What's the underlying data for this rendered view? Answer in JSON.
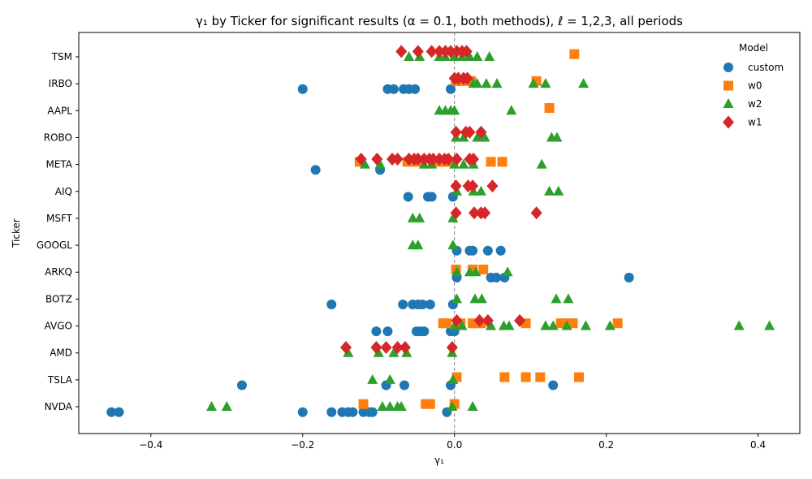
{
  "chart_data": {
    "type": "scatter",
    "title": "γ₁ by Ticker for significant results (α = 0.1, both methods), ℓ = 1,2,3, all periods",
    "xlabel": "γ₁",
    "ylabel": "Ticker",
    "xlim": [
      -0.495,
      0.455
    ],
    "xticks": [
      -0.4,
      -0.2,
      0.0,
      0.2,
      0.4
    ],
    "xtick_labels": [
      "−0.4",
      "−0.2",
      "0.0",
      "0.2",
      "0.4"
    ],
    "categories": [
      "NVDA",
      "TSLA",
      "AMD",
      "AVGO",
      "BOTZ",
      "ARKQ",
      "GOOGL",
      "MSFT",
      "AIQ",
      "META",
      "ROBO",
      "AAPL",
      "IRBO",
      "TSM"
    ],
    "reference_line_x": 0,
    "legend": {
      "title": "Model",
      "position": "top-right"
    },
    "series": [
      {
        "name": "custom",
        "color": "#1f77b4",
        "marker": "circle",
        "offset": -0.2,
        "points": [
          [
            "NVDA",
            -0.452
          ],
          [
            "NVDA",
            -0.442
          ],
          [
            "NVDA",
            -0.2
          ],
          [
            "NVDA",
            -0.162
          ],
          [
            "NVDA",
            -0.148
          ],
          [
            "NVDA",
            -0.14
          ],
          [
            "NVDA",
            -0.134
          ],
          [
            "NVDA",
            -0.12
          ],
          [
            "NVDA",
            -0.112
          ],
          [
            "NVDA",
            -0.108
          ],
          [
            "NVDA",
            -0.01
          ],
          [
            "TSLA",
            -0.28
          ],
          [
            "TSLA",
            -0.09
          ],
          [
            "TSLA",
            -0.066
          ],
          [
            "TSLA",
            -0.005
          ],
          [
            "TSLA",
            0.13
          ],
          [
            "AVGO",
            -0.103
          ],
          [
            "AVGO",
            -0.088
          ],
          [
            "AVGO",
            -0.05
          ],
          [
            "AVGO",
            -0.045
          ],
          [
            "AVGO",
            -0.04
          ],
          [
            "AVGO",
            -0.005
          ],
          [
            "AVGO",
            0.0
          ],
          [
            "BOTZ",
            -0.162
          ],
          [
            "BOTZ",
            -0.068
          ],
          [
            "BOTZ",
            -0.055
          ],
          [
            "BOTZ",
            -0.048
          ],
          [
            "BOTZ",
            -0.042
          ],
          [
            "BOTZ",
            -0.032
          ],
          [
            "BOTZ",
            -0.002
          ],
          [
            "ARKQ",
            0.003
          ],
          [
            "ARKQ",
            0.048
          ],
          [
            "ARKQ",
            0.055
          ],
          [
            "ARKQ",
            0.066
          ],
          [
            "ARKQ",
            0.23
          ],
          [
            "GOOGL",
            0.003
          ],
          [
            "GOOGL",
            0.02
          ],
          [
            "GOOGL",
            0.024
          ],
          [
            "GOOGL",
            0.044
          ],
          [
            "GOOGL",
            0.061
          ],
          [
            "AIQ",
            -0.061
          ],
          [
            "AIQ",
            -0.035
          ],
          [
            "AIQ",
            -0.03
          ],
          [
            "AIQ",
            -0.002
          ],
          [
            "META",
            -0.183
          ],
          [
            "META",
            -0.098
          ],
          [
            "IRBO",
            -0.2
          ],
          [
            "IRBO",
            -0.088
          ],
          [
            "IRBO",
            -0.08
          ],
          [
            "IRBO",
            -0.067
          ],
          [
            "IRBO",
            -0.06
          ],
          [
            "IRBO",
            -0.052
          ],
          [
            "IRBO",
            -0.005
          ]
        ]
      },
      {
        "name": "w0",
        "color": "#ff7f0e",
        "marker": "square",
        "offset": 0.1,
        "points": [
          [
            "NVDA",
            -0.12
          ],
          [
            "NVDA",
            -0.038
          ],
          [
            "NVDA",
            -0.032
          ],
          [
            "NVDA",
            0.0
          ],
          [
            "TSLA",
            0.003
          ],
          [
            "TSLA",
            0.066
          ],
          [
            "TSLA",
            0.094
          ],
          [
            "TSLA",
            0.113
          ],
          [
            "TSLA",
            0.164
          ],
          [
            "AVGO",
            -0.015
          ],
          [
            "AVGO",
            -0.01
          ],
          [
            "AVGO",
            0.008
          ],
          [
            "AVGO",
            0.024
          ],
          [
            "AVGO",
            0.035
          ],
          [
            "AVGO",
            0.094
          ],
          [
            "AVGO",
            0.14
          ],
          [
            "AVGO",
            0.148
          ],
          [
            "AVGO",
            0.156
          ],
          [
            "AVGO",
            0.215
          ],
          [
            "ARKQ",
            0.002
          ],
          [
            "ARKQ",
            0.024
          ],
          [
            "ARKQ",
            0.038
          ],
          [
            "META",
            -0.125
          ],
          [
            "META",
            -0.062
          ],
          [
            "META",
            -0.05
          ],
          [
            "META",
            -0.022
          ],
          [
            "META",
            -0.015
          ],
          [
            "META",
            -0.008
          ],
          [
            "META",
            0.048
          ],
          [
            "META",
            0.063
          ],
          [
            "AAPL",
            0.125
          ],
          [
            "IRBO",
            0.002
          ],
          [
            "IRBO",
            0.01
          ],
          [
            "IRBO",
            0.022
          ],
          [
            "IRBO",
            0.108
          ],
          [
            "TSM",
            0.158
          ]
        ]
      },
      {
        "name": "w2",
        "color": "#2ca02c",
        "marker": "triangle",
        "offset": 0.0,
        "points": [
          [
            "NVDA",
            -0.32
          ],
          [
            "NVDA",
            -0.3
          ],
          [
            "NVDA",
            -0.095
          ],
          [
            "NVDA",
            -0.085
          ],
          [
            "NVDA",
            -0.075
          ],
          [
            "NVDA",
            -0.07
          ],
          [
            "NVDA",
            -0.003
          ],
          [
            "NVDA",
            0.024
          ],
          [
            "TSLA",
            -0.108
          ],
          [
            "TSLA",
            -0.085
          ],
          [
            "TSLA",
            -0.002
          ],
          [
            "AMD",
            -0.14
          ],
          [
            "AMD",
            -0.1
          ],
          [
            "AMD",
            -0.08
          ],
          [
            "AMD",
            -0.063
          ],
          [
            "AMD",
            -0.003
          ],
          [
            "AVGO",
            0.0
          ],
          [
            "AVGO",
            0.01
          ],
          [
            "AVGO",
            0.048
          ],
          [
            "AVGO",
            0.065
          ],
          [
            "AVGO",
            0.072
          ],
          [
            "AVGO",
            0.12
          ],
          [
            "AVGO",
            0.13
          ],
          [
            "AVGO",
            0.148
          ],
          [
            "AVGO",
            0.173
          ],
          [
            "AVGO",
            0.205
          ],
          [
            "AVGO",
            0.375
          ],
          [
            "AVGO",
            0.415
          ],
          [
            "BOTZ",
            0.003
          ],
          [
            "BOTZ",
            0.027
          ],
          [
            "BOTZ",
            0.036
          ],
          [
            "BOTZ",
            0.134
          ],
          [
            "BOTZ",
            0.15
          ],
          [
            "ARKQ",
            0.003
          ],
          [
            "ARKQ",
            0.02
          ],
          [
            "ARKQ",
            0.028
          ],
          [
            "ARKQ",
            0.07
          ],
          [
            "GOOGL",
            -0.055
          ],
          [
            "GOOGL",
            -0.048
          ],
          [
            "GOOGL",
            -0.002
          ],
          [
            "MSFT",
            -0.055
          ],
          [
            "MSFT",
            -0.046
          ],
          [
            "MSFT",
            -0.002
          ],
          [
            "AIQ",
            0.003
          ],
          [
            "AIQ",
            0.025
          ],
          [
            "AIQ",
            0.035
          ],
          [
            "AIQ",
            0.125
          ],
          [
            "AIQ",
            0.137
          ],
          [
            "META",
            -0.118
          ],
          [
            "META",
            -0.098
          ],
          [
            "META",
            -0.04
          ],
          [
            "META",
            -0.03
          ],
          [
            "META",
            0.0
          ],
          [
            "META",
            0.012
          ],
          [
            "META",
            0.025
          ],
          [
            "META",
            0.115
          ],
          [
            "ROBO",
            0.002
          ],
          [
            "ROBO",
            0.012
          ],
          [
            "ROBO",
            0.03
          ],
          [
            "ROBO",
            0.04
          ],
          [
            "ROBO",
            0.128
          ],
          [
            "ROBO",
            0.135
          ],
          [
            "AAPL",
            -0.02
          ],
          [
            "AAPL",
            -0.012
          ],
          [
            "AAPL",
            -0.005
          ],
          [
            "AAPL",
            0.0
          ],
          [
            "AAPL",
            0.075
          ],
          [
            "IRBO",
            0.025
          ],
          [
            "IRBO",
            0.03
          ],
          [
            "IRBO",
            0.042
          ],
          [
            "IRBO",
            0.056
          ],
          [
            "IRBO",
            0.104
          ],
          [
            "IRBO",
            0.12
          ],
          [
            "IRBO",
            0.17
          ],
          [
            "TSM",
            -0.06
          ],
          [
            "TSM",
            -0.046
          ],
          [
            "TSM",
            -0.02
          ],
          [
            "TSM",
            -0.012
          ],
          [
            "TSM",
            0.0
          ],
          [
            "TSM",
            0.01
          ],
          [
            "TSM",
            0.02
          ],
          [
            "TSM",
            0.03
          ],
          [
            "TSM",
            0.046
          ]
        ]
      },
      {
        "name": "w1",
        "color": "#d62728",
        "marker": "diamond",
        "offset": 0.2,
        "points": [
          [
            "AMD",
            -0.143
          ],
          [
            "AMD",
            -0.103
          ],
          [
            "AMD",
            -0.09
          ],
          [
            "AMD",
            -0.075
          ],
          [
            "AMD",
            -0.065
          ],
          [
            "AMD",
            -0.003
          ],
          [
            "AVGO",
            0.003
          ],
          [
            "AVGO",
            0.033
          ],
          [
            "AVGO",
            0.044
          ],
          [
            "AVGO",
            0.086
          ],
          [
            "MSFT",
            0.002
          ],
          [
            "MSFT",
            0.026
          ],
          [
            "MSFT",
            0.035
          ],
          [
            "MSFT",
            0.04
          ],
          [
            "MSFT",
            0.108
          ],
          [
            "AIQ",
            0.002
          ],
          [
            "AIQ",
            0.018
          ],
          [
            "AIQ",
            0.024
          ],
          [
            "AIQ",
            0.05
          ],
          [
            "META",
            -0.123
          ],
          [
            "META",
            -0.102
          ],
          [
            "META",
            -0.082
          ],
          [
            "META",
            -0.075
          ],
          [
            "META",
            -0.06
          ],
          [
            "META",
            -0.053
          ],
          [
            "META",
            -0.048
          ],
          [
            "META",
            -0.04
          ],
          [
            "META",
            -0.033
          ],
          [
            "META",
            -0.028
          ],
          [
            "META",
            -0.02
          ],
          [
            "META",
            -0.013
          ],
          [
            "META",
            -0.008
          ],
          [
            "META",
            0.003
          ],
          [
            "META",
            0.02
          ],
          [
            "META",
            0.025
          ],
          [
            "ROBO",
            0.002
          ],
          [
            "ROBO",
            0.015
          ],
          [
            "ROBO",
            0.02
          ],
          [
            "ROBO",
            0.035
          ],
          [
            "IRBO",
            0.0
          ],
          [
            "IRBO",
            0.005
          ],
          [
            "IRBO",
            0.012
          ],
          [
            "IRBO",
            0.017
          ],
          [
            "TSM",
            -0.07
          ],
          [
            "TSM",
            -0.048
          ],
          [
            "TSM",
            -0.03
          ],
          [
            "TSM",
            -0.02
          ],
          [
            "TSM",
            -0.012
          ],
          [
            "TSM",
            -0.005
          ],
          [
            "TSM",
            0.003
          ],
          [
            "TSM",
            0.01
          ],
          [
            "TSM",
            0.016
          ]
        ]
      }
    ]
  }
}
